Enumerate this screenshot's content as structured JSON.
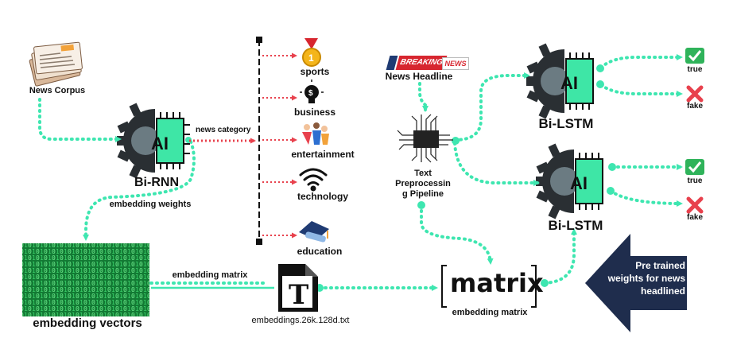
{
  "labels": {
    "news_corpus": "News Corpus",
    "bi_rnn": "Bi-RNN",
    "news_category": "news category",
    "embedding_weights": "embedding weights",
    "embedding_vectors": "embedding vectors",
    "embedding_matrix_left": "embedding matrix",
    "embeddings_file": "embeddings.26k.128d.txt",
    "matrix_word": "matrix",
    "embedding_matrix_right": "embedding matrix",
    "pretrained": "Pre trained weights for news headlined",
    "news_headline": "News Headline",
    "breaking": "BREAKING",
    "news": "NEWS",
    "text_preprocessing": [
      "Text",
      "Preprocessin",
      "g Pipeline"
    ],
    "bi_lstm_top": "Bi-LSTM",
    "bi_lstm_bottom": "Bi-LSTM",
    "true_top": "true",
    "fake_top": "fake",
    "true_bottom": "true",
    "fake_bottom": "fake",
    "ai": "AI",
    "file_letter": "T"
  },
  "categories": [
    {
      "label": "sports",
      "icon": "medal-icon"
    },
    {
      "label": "business",
      "icon": "lightbulb-dollar-icon"
    },
    {
      "label": "entertainment",
      "icon": "dancers-icon"
    },
    {
      "label": "technology",
      "icon": "wifi-icon"
    },
    {
      "label": "education",
      "icon": "graduation-cap-icon"
    }
  ],
  "colors": {
    "teal": "#3ee6b0",
    "chip_green": "#3ee6a6",
    "gear_gray": "#6b7b82",
    "red_dotted": "#e8414d",
    "navy": "#1f2d4d",
    "check_green": "#2fb35a",
    "cross_red": "#e8414d",
    "matrix_green": "#1aa34a"
  }
}
